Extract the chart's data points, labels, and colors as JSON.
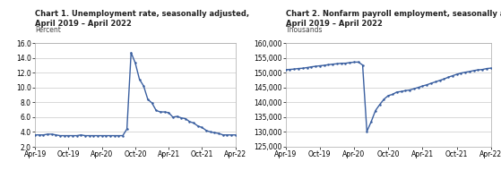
{
  "chart1_title_line1": "Chart 1. Unemployment rate, seasonally adjusted,",
  "chart1_title_line2": "April 2019 – April 2022",
  "chart1_ylabel": "Percent",
  "chart1_ylim": [
    2.0,
    16.0
  ],
  "chart1_yticks": [
    2.0,
    4.0,
    6.0,
    8.0,
    10.0,
    12.0,
    14.0,
    16.0
  ],
  "chart1_ytick_labels": [
    "2.0",
    "4.0",
    "6.0",
    "8.0",
    "10.0",
    "12.0",
    "14.0",
    "16.0"
  ],
  "chart1_xtick_labels": [
    "Apr-19",
    "Oct-19",
    "Apr-20",
    "Oct-20",
    "Apr-21",
    "Oct-21",
    "Apr-22"
  ],
  "chart1_data": [
    3.6,
    3.6,
    3.6,
    3.7,
    3.7,
    3.6,
    3.5,
    3.5,
    3.5,
    3.5,
    3.5,
    3.6,
    3.5,
    3.5,
    3.5,
    3.5,
    3.5,
    3.5,
    3.5,
    3.5,
    3.5,
    3.5,
    4.4,
    14.7,
    13.3,
    11.1,
    10.2,
    8.4,
    7.9,
    6.9,
    6.7,
    6.7,
    6.6,
    6.0,
    6.1,
    5.9,
    5.8,
    5.4,
    5.2,
    4.8,
    4.6,
    4.2,
    4.0,
    3.9,
    3.8,
    3.6,
    3.6,
    3.6,
    3.6
  ],
  "chart2_title_line1": "Chart 2. Nonfarm payroll employment, seasonally adjusted,",
  "chart2_title_line2": "April 2019 – April 2022",
  "chart2_ylabel": "Thousands",
  "chart2_ylim": [
    125000,
    160000
  ],
  "chart2_yticks": [
    125000,
    130000,
    135000,
    140000,
    145000,
    150000,
    155000,
    160000
  ],
  "chart2_ytick_labels": [
    "125,000",
    "130,000",
    "135,000",
    "140,000",
    "145,000",
    "150,000",
    "155,000",
    "160,000"
  ],
  "chart2_xtick_labels": [
    "Apr-19",
    "Oct-19",
    "Apr-20",
    "Oct-20",
    "Apr-21",
    "Oct-21",
    "Apr-22"
  ],
  "chart2_data": [
    150983,
    151084,
    151195,
    151388,
    151476,
    151694,
    151946,
    152133,
    152299,
    152464,
    152669,
    152855,
    152981,
    153148,
    153163,
    153369,
    153534,
    153552,
    152553,
    130161,
    133433,
    137187,
    139231,
    141047,
    142254,
    142662,
    143462,
    143618,
    143937,
    144149,
    144566,
    145003,
    145488,
    145892,
    146406,
    146878,
    147367,
    147841,
    148445,
    148939,
    149438,
    149862,
    150138,
    150386,
    150695,
    150929,
    151058,
    151376,
    151521
  ],
  "line_color": "#3A5FA0",
  "marker": "o",
  "marker_size": 1.8,
  "line_width": 1.0,
  "title_fontsize": 6.0,
  "label_fontsize": 5.5,
  "tick_fontsize": 5.5,
  "background_color": "#ffffff",
  "grid_color": "#bbbbbb",
  "spine_color": "#aaaaaa"
}
